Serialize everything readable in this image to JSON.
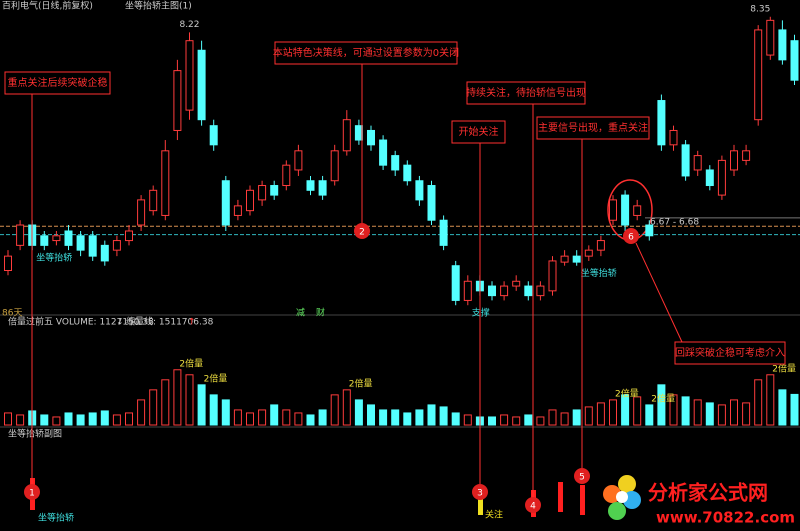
{
  "chart_data": {
    "type": "candlestick",
    "title": "百利电气(日线,前复权)",
    "indicator": "坐等抬轿主图(1)",
    "ylim": [
      5.9,
      8.49
    ],
    "candles": [
      [
        6.23,
        6.4,
        6.19,
        6.35
      ],
      [
        6.44,
        6.65,
        6.4,
        6.61
      ],
      [
        6.61,
        6.65,
        6.4,
        6.44
      ],
      [
        6.52,
        6.56,
        6.4,
        6.44
      ],
      [
        6.48,
        6.56,
        6.44,
        6.52
      ],
      [
        6.56,
        6.61,
        6.4,
        6.44
      ],
      [
        6.52,
        6.56,
        6.35,
        6.4
      ],
      [
        6.52,
        6.56,
        6.31,
        6.35
      ],
      [
        6.44,
        6.48,
        6.27,
        6.31
      ],
      [
        6.4,
        6.52,
        6.35,
        6.48
      ],
      [
        6.48,
        6.61,
        6.44,
        6.56
      ],
      [
        6.61,
        6.86,
        6.56,
        6.82
      ],
      [
        6.73,
        6.94,
        6.69,
        6.9
      ],
      [
        6.69,
        7.32,
        6.65,
        7.23
      ],
      [
        7.4,
        7.99,
        7.32,
        7.9
      ],
      [
        7.57,
        8.22,
        7.49,
        8.15
      ],
      [
        8.07,
        8.15,
        7.44,
        7.49
      ],
      [
        7.44,
        7.49,
        7.23,
        7.28
      ],
      [
        6.98,
        7.02,
        6.56,
        6.61
      ],
      [
        6.69,
        6.82,
        6.65,
        6.77
      ],
      [
        6.73,
        6.94,
        6.69,
        6.9
      ],
      [
        6.82,
        6.98,
        6.77,
        6.94
      ],
      [
        6.94,
        6.98,
        6.82,
        6.86
      ],
      [
        6.94,
        7.15,
        6.9,
        7.11
      ],
      [
        7.07,
        7.28,
        7.02,
        7.23
      ],
      [
        6.98,
        7.02,
        6.86,
        6.9
      ],
      [
        6.98,
        7.02,
        6.82,
        6.86
      ],
      [
        6.98,
        7.28,
        6.94,
        7.23
      ],
      [
        7.23,
        7.57,
        7.19,
        7.49
      ],
      [
        7.44,
        7.49,
        7.28,
        7.32
      ],
      [
        7.4,
        7.44,
        7.23,
        7.28
      ],
      [
        7.32,
        7.36,
        7.07,
        7.11
      ],
      [
        7.19,
        7.23,
        7.02,
        7.07
      ],
      [
        7.11,
        7.15,
        6.94,
        6.98
      ],
      [
        6.98,
        7.02,
        6.77,
        6.82
      ],
      [
        6.94,
        6.98,
        6.61,
        6.65
      ],
      [
        6.65,
        6.69,
        6.4,
        6.44
      ],
      [
        6.27,
        6.31,
        5.94,
        5.98
      ],
      [
        5.98,
        6.19,
        5.94,
        6.14
      ],
      [
        6.14,
        6.19,
        6.02,
        6.06
      ],
      [
        6.1,
        6.14,
        5.98,
        6.02
      ],
      [
        6.02,
        6.14,
        5.98,
        6.1
      ],
      [
        6.1,
        6.19,
        6.06,
        6.14
      ],
      [
        6.1,
        6.14,
        5.98,
        6.02
      ],
      [
        6.02,
        6.14,
        5.98,
        6.1
      ],
      [
        6.06,
        6.35,
        6.02,
        6.31
      ],
      [
        6.3,
        6.4,
        6.27,
        6.35
      ],
      [
        6.35,
        6.4,
        6.27,
        6.3
      ],
      [
        6.35,
        6.44,
        6.31,
        6.4
      ],
      [
        6.4,
        6.52,
        6.35,
        6.48
      ],
      [
        6.65,
        6.86,
        6.61,
        6.82
      ],
      [
        6.86,
        6.9,
        6.56,
        6.61
      ],
      [
        6.69,
        6.82,
        6.65,
        6.77
      ],
      [
        6.61,
        6.65,
        6.48,
        6.52
      ],
      [
        7.65,
        7.7,
        7.23,
        7.28
      ],
      [
        7.28,
        7.44,
        7.23,
        7.4
      ],
      [
        7.28,
        7.32,
        6.98,
        7.02
      ],
      [
        7.07,
        7.23,
        7.02,
        7.19
      ],
      [
        7.07,
        7.11,
        6.9,
        6.94
      ],
      [
        6.86,
        7.19,
        6.82,
        7.15
      ],
      [
        7.07,
        7.28,
        7.02,
        7.23
      ],
      [
        7.15,
        7.28,
        7.11,
        7.23
      ],
      [
        7.49,
        8.28,
        7.44,
        8.24
      ],
      [
        8.03,
        8.35,
        7.99,
        8.32
      ],
      [
        8.24,
        8.32,
        7.95,
        7.99
      ],
      [
        8.15,
        8.2,
        7.78,
        7.82
      ]
    ],
    "high_marks": [
      8.22,
      8.35
    ],
    "range": {
      "low": 6.67,
      "high": 6.68,
      "label": "6.67 - 6.68"
    },
    "days_label": "86天",
    "event_marks": [
      "减",
      "财"
    ],
    "decision_lines": [
      {
        "value": 6.6,
        "color": "#d89050"
      },
      {
        "value": 6.53,
        "color": "#30b8c0"
      }
    ],
    "signal_labels": [
      {
        "text": "坐等抬轿",
        "index": 2
      },
      {
        "text": "支撑",
        "index": 38
      },
      {
        "text": "坐等抬轿",
        "index": 47
      }
    ],
    "volume": {
      "title": "倍量过前五 VOLUME: 1127150.38",
      "down_arrow": "↓",
      "line_label": "缩量线: 1511706.38",
      "up_arrow": "↑",
      "ylim": [
        0,
        3500000
      ],
      "values": [
        444000,
        370000,
        518000,
        370000,
        296000,
        444000,
        370000,
        444000,
        518000,
        370000,
        444000,
        925000,
        1295000,
        1665000,
        2035000,
        1850000,
        1480000,
        1110000,
        925000,
        555000,
        444000,
        555000,
        740000,
        555000,
        444000,
        370000,
        555000,
        1110000,
        1295000,
        925000,
        740000,
        555000,
        555000,
        444000,
        555000,
        740000,
        666000,
        444000,
        370000,
        296000,
        296000,
        370000,
        296000,
        370000,
        296000,
        555000,
        444000,
        555000,
        666000,
        814000,
        925000,
        1110000,
        1036000,
        740000,
        1480000,
        1110000,
        1036000,
        925000,
        814000,
        740000,
        925000,
        814000,
        1665000,
        1850000,
        1295000,
        1127150.38
      ],
      "labels": [
        {
          "text": "2倍量",
          "index": 14
        },
        {
          "text": "2倍量",
          "index": 16
        },
        {
          "text": "2倍量",
          "index": 28
        },
        {
          "text": "2倍量",
          "index": 50
        },
        {
          "text": "2倍量",
          "index": 53
        },
        {
          "text": "2倍量",
          "index": 63
        }
      ]
    },
    "sub_title": "坐等抬轿副图",
    "sub_labels": [
      "坐等抬轿",
      "关注"
    ],
    "annotations": [
      {
        "number": "1",
        "text": "重点关注后续突破企稳"
      },
      {
        "number": "2",
        "text": "本站特色决策线，可通过设置参数为0关闭"
      },
      {
        "number": "3",
        "text": "开始关注"
      },
      {
        "number": "4",
        "text": "持续关注，待抬轿信号出现"
      },
      {
        "number": "5",
        "text": "主要信号出现，重点关注"
      },
      {
        "number": "6",
        "text": "回踩突破企稳可考虑介入"
      }
    ],
    "watermark": {
      "name": "分析家公式网",
      "url": "www.70822.com"
    }
  }
}
